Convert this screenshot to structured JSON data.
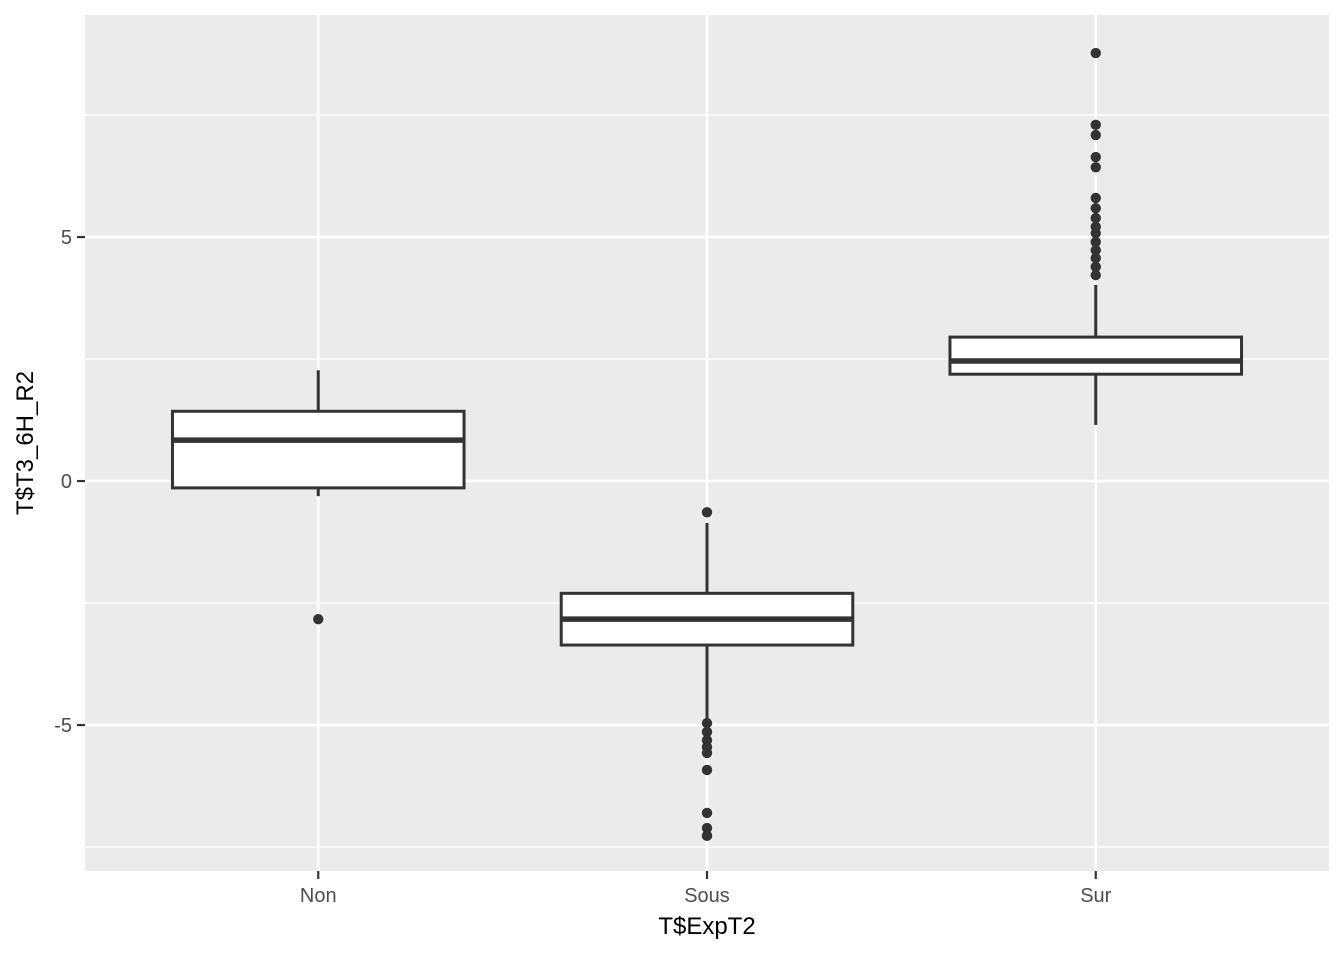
{
  "chart_data": {
    "type": "boxplot",
    "title": "",
    "xlabel": "T$ExpT2",
    "ylabel": "T$T3_6H_R2",
    "categories": [
      "Non",
      "Sous",
      "Sur"
    ],
    "y_ticks": [
      -5,
      0,
      5
    ],
    "y_minor_gridlines": [
      -7.5,
      -2.5,
      2.5,
      7.5
    ],
    "ylim": [
      -7.99,
      9.55
    ],
    "grid": "on",
    "legend": "none",
    "groups": [
      {
        "label": "Non",
        "whisker_min": -0.31,
        "q1": -0.14,
        "median": 0.84,
        "q3": 1.43,
        "whisker_max": 2.27,
        "outliers": [
          -2.83
        ]
      },
      {
        "label": "Sous",
        "whisker_min": -4.86,
        "q1": -3.36,
        "median": -2.83,
        "q3": -2.3,
        "whisker_max": -0.86,
        "outliers": [
          -0.64,
          -4.96,
          -5.14,
          -5.31,
          -5.45,
          -5.57,
          -5.92,
          -6.8,
          -7.11,
          -7.27
        ]
      },
      {
        "label": "Sur",
        "whisker_min": 1.15,
        "q1": 2.19,
        "median": 2.46,
        "q3": 2.95,
        "whisker_max": 4.02,
        "outliers": [
          4.22,
          4.39,
          4.57,
          4.73,
          4.9,
          5.08,
          5.21,
          5.39,
          5.59,
          5.8,
          6.43,
          6.64,
          7.09,
          7.3,
          8.77
        ]
      }
    ],
    "style": {
      "panel_background": "#EBEBEB",
      "gridline_color": "#FFFFFF",
      "box_stroke": "#333333",
      "box_fill": "#FFFFFF",
      "point_color": "#333333",
      "tick_mark_color": "#333333",
      "tick_label_color": "#4D4D4D",
      "axis_title_color": "#000000",
      "outer_background": "#FFFFFF"
    }
  }
}
